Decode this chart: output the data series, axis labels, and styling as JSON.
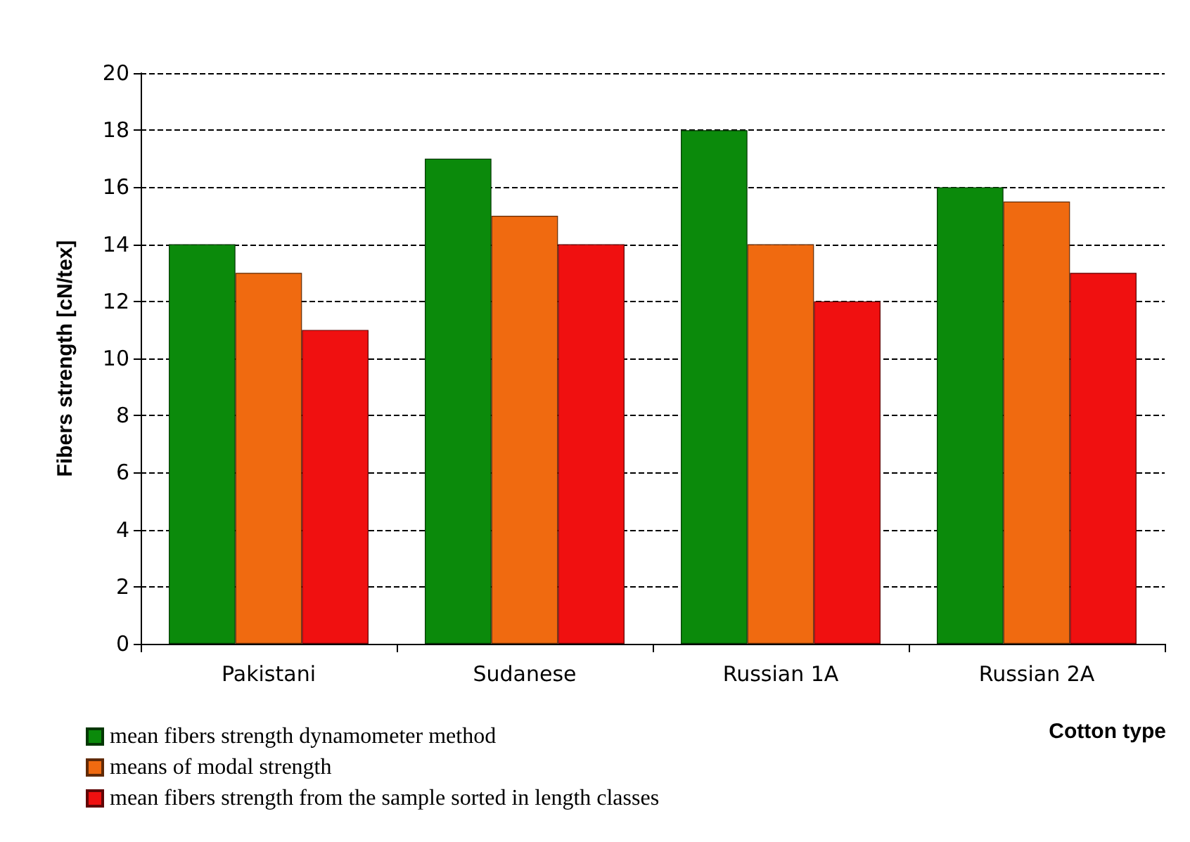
{
  "chart_data": {
    "type": "bar",
    "xlabel": "Cotton type",
    "ylabel": "Fibers strength [cN/tex]",
    "categories": [
      "Pakistani",
      "Sudanese",
      "Russian 1A",
      "Russian 2A"
    ],
    "series": [
      {
        "name": "mean fibers strength dynamometer method",
        "color": "#0b8a0b",
        "values": [
          14,
          17,
          18,
          16
        ]
      },
      {
        "name": "means of modal strength",
        "color": "#f06a10",
        "values": [
          13,
          15,
          14,
          15.5
        ]
      },
      {
        "name": "mean fibers strength from the sample sorted in length classes",
        "color": "#f01010",
        "values": [
          11,
          14,
          12,
          13
        ]
      }
    ],
    "ylim": [
      0,
      20
    ],
    "yticks": [
      0,
      2,
      4,
      6,
      8,
      10,
      12,
      14,
      16,
      18,
      20
    ],
    "grid": "y",
    "legend": "bottom left"
  }
}
